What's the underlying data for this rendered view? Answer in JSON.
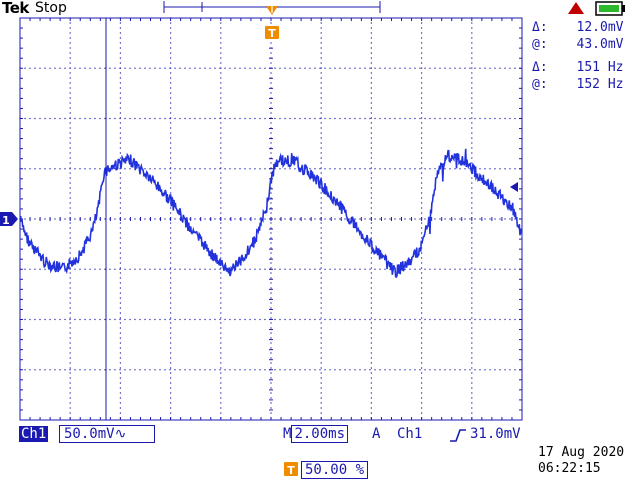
{
  "header": {
    "brand": "Tek",
    "status": "Stop"
  },
  "cursor_readouts": {
    "voltage_delta": "12.0mV",
    "voltage_at": "43.0mV",
    "freq_delta": "151 Hz",
    "freq_at": "152 Hz",
    "delta_symbol": "Δ:",
    "at_symbol": "@:"
  },
  "markers": {
    "channel_marker": "1",
    "trigger_marker": "T"
  },
  "footer": {
    "channel_label": "Ch1",
    "volts_per_div": "50.0mV",
    "coupling_symbol": "∿",
    "time_per_div_prefix": "M",
    "time_per_div": "2.00ms",
    "trigger_source_prefix": "A",
    "trigger_channel": "Ch1",
    "trigger_slope_symbol": "⨍",
    "trigger_level": "31.0mV",
    "trigger_position": "50.00 %",
    "date": "17 Aug 2020",
    "time": "06:22:15"
  },
  "colors": {
    "trace": "#2233dd",
    "grid": "#1a1ab0",
    "accent_orange": "#f08c00",
    "battery_green": "#2db82d",
    "alert_red": "#c00000"
  },
  "icons": [
    "triangle-alert-icon",
    "battery-icon",
    "trigger-arrow-icon",
    "channel-marker-icon",
    "rising-edge-icon"
  ]
}
